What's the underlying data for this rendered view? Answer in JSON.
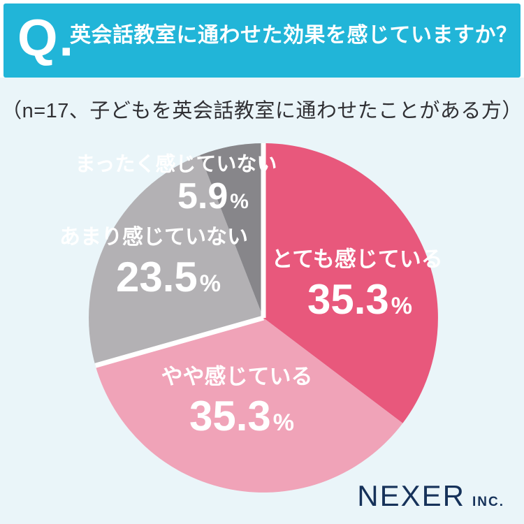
{
  "header": {
    "q_label": "Q.",
    "title": "英会話教室に通わせた効果を感じていますか？"
  },
  "subtitle": "（n=17、子どもを英会話教室に通わせたことがある方）",
  "footer": {
    "brand": "NEXER",
    "brand_suffix": "INC."
  },
  "colors": {
    "header_teal": "#21b5d8",
    "content_background": "#eaf5f9",
    "label_white": "#ffffff",
    "subtitle_text": "#303034",
    "brand_navy": "#16325a",
    "separator_white": "#ffffff"
  },
  "chart_data": {
    "type": "pie",
    "title": "英会話教室に通わせた効果を感じていますか？",
    "sample_note": "（n=17、子どもを英会話教室に通わせたことがある方）",
    "start_angle_deg": 0,
    "direction": "clockwise",
    "legend_position": "on-slices",
    "slices": [
      {
        "label": "とても感じている",
        "value": 35.3,
        "unit": "%",
        "color": "#e8587c"
      },
      {
        "label": "やや感じている",
        "value": 35.3,
        "unit": "%",
        "color": "#f0a3b8"
      },
      {
        "label": "あまり感じていない",
        "value": 23.5,
        "unit": "%",
        "color": "#b3b1b4"
      },
      {
        "label": "まったく感じていない",
        "value": 5.9,
        "unit": "%",
        "color": "#87868a"
      }
    ],
    "group_separator_positions_pct": [
      0,
      70.6
    ]
  }
}
